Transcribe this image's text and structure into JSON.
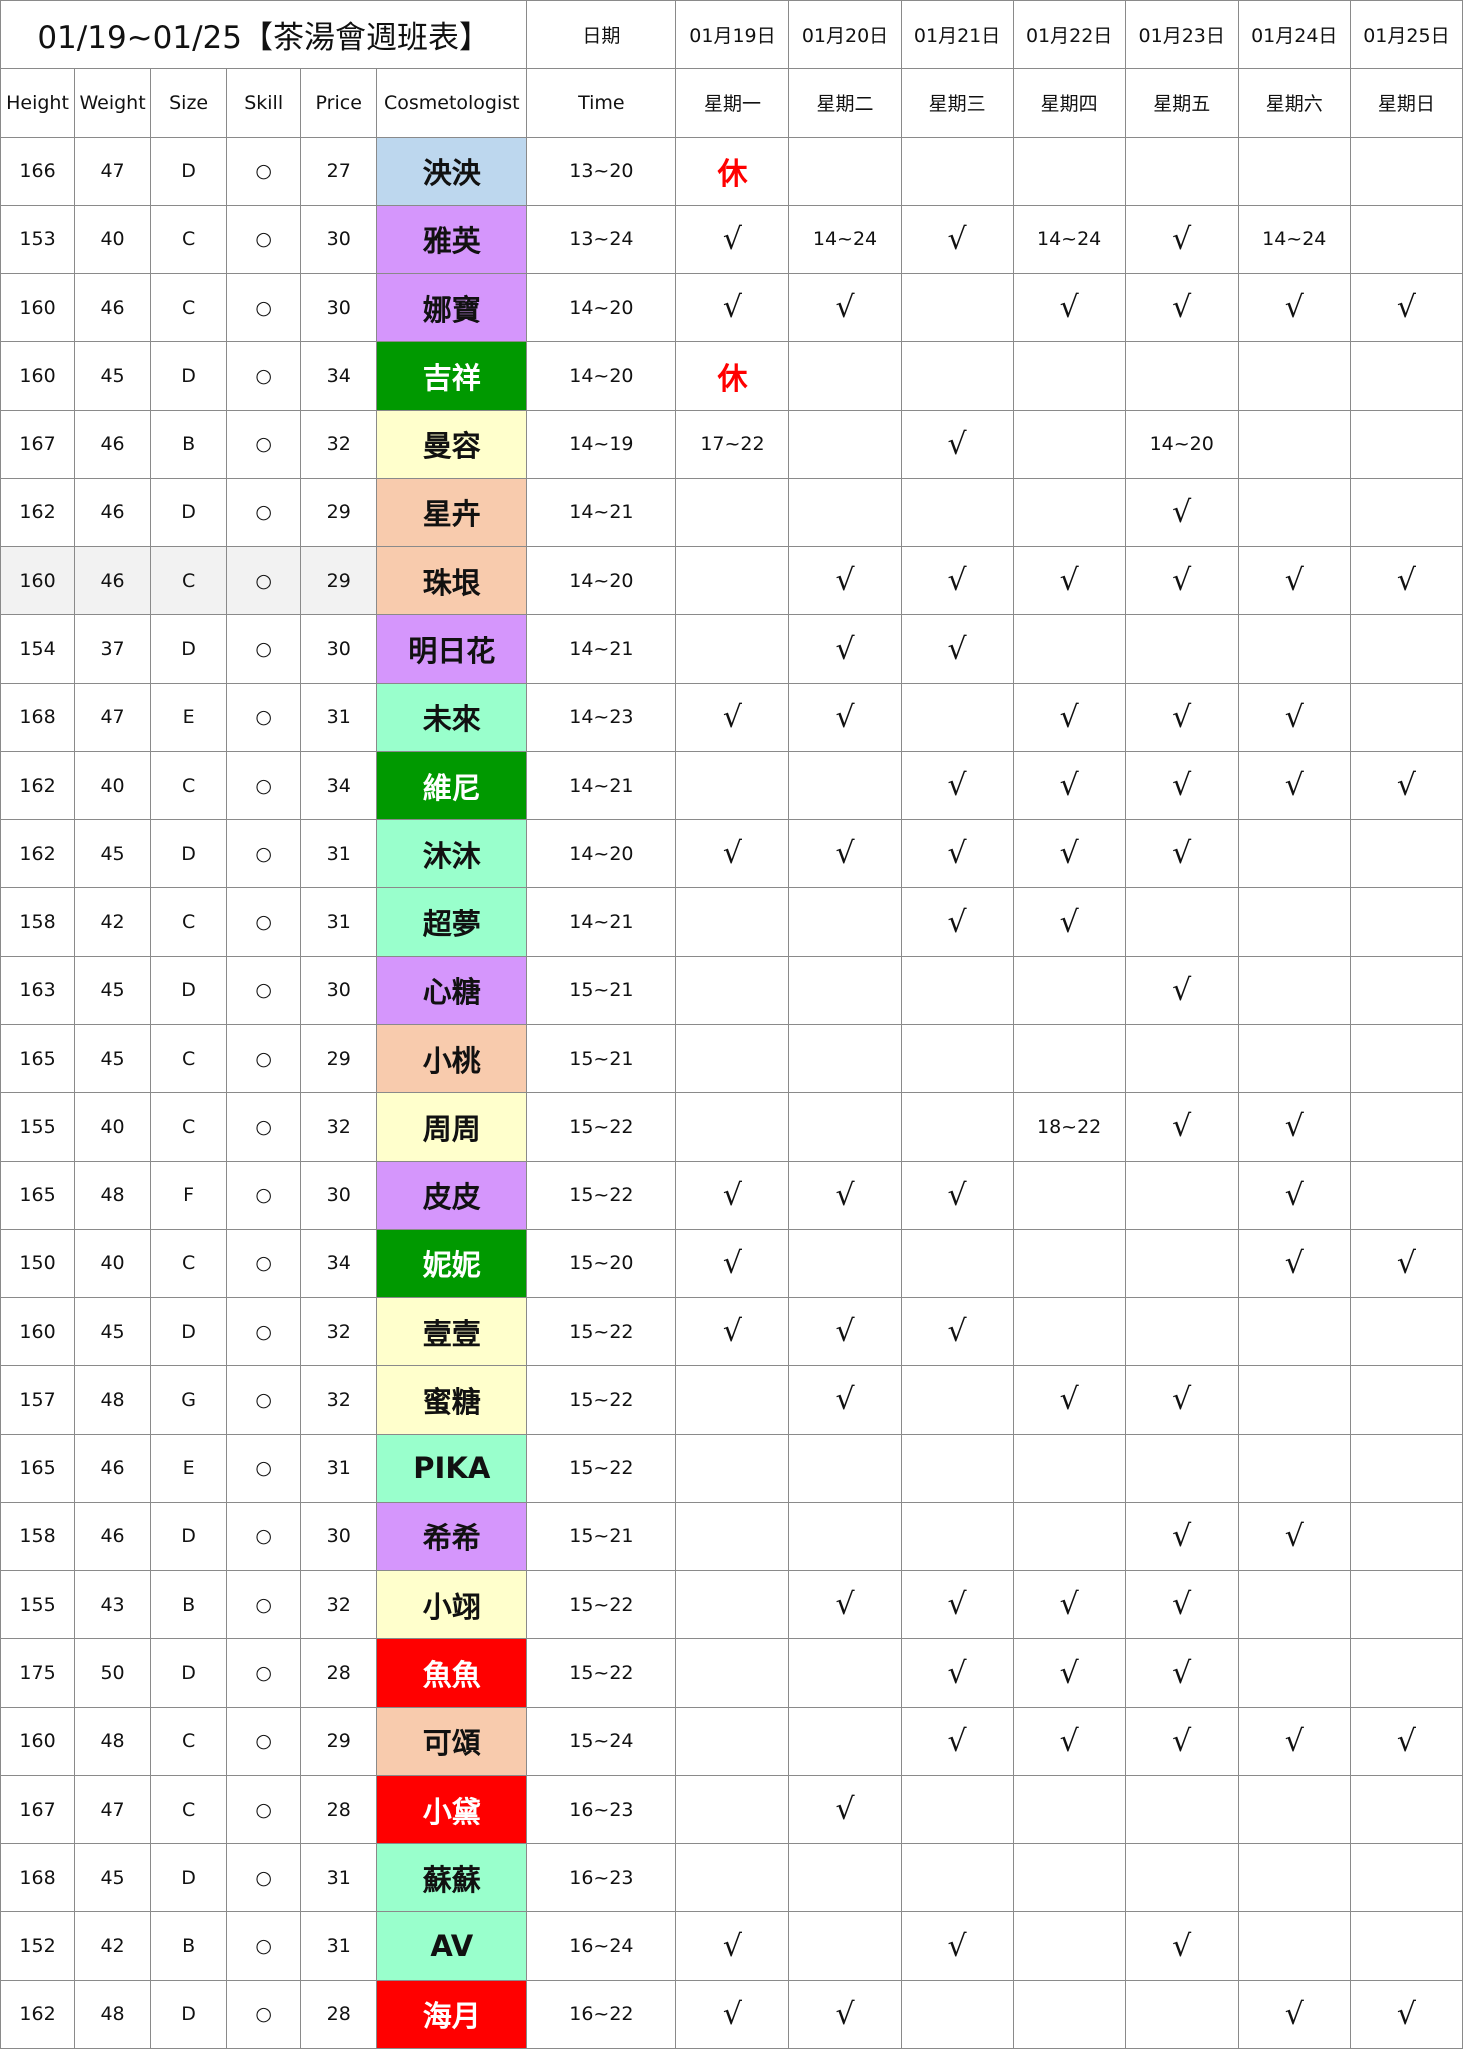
{
  "title": "01/19~01/25【茶湯會週班表】",
  "date_label": "日期",
  "dates": [
    "01月19日",
    "01月20日",
    "01月21日",
    "01月22日",
    "01月23日",
    "01月24日",
    "01月25日"
  ],
  "headers": [
    "Height",
    "Weight",
    "Size",
    "Skill",
    "Price",
    "Cosmetologist",
    "Time"
  ],
  "weekdays": [
    "星期一",
    "星期二",
    "星期三",
    "星期四",
    "星期五",
    "星期六",
    "星期日"
  ],
  "colors": {
    "blue": "#bdd7ee",
    "purple": "#d596fc",
    "green": "#009900",
    "yellow": "#ffffcc",
    "peach": "#f8cbad",
    "mint": "#99ffcc",
    "red": "#ff0000",
    "highlight_row": "#f2f2f2"
  },
  "rows": [
    {
      "height": "166",
      "weight": "47",
      "size": "D",
      "skill": "○",
      "price": "27",
      "name": "泱泱",
      "color": "blue",
      "time": "13~20",
      "days": [
        "休",
        "",
        "",
        "",
        "",
        "",
        ""
      ]
    },
    {
      "height": "153",
      "weight": "40",
      "size": "C",
      "skill": "○",
      "price": "30",
      "name": "雅英",
      "color": "purple",
      "time": "13~24",
      "days": [
        "√",
        "14~24",
        "√",
        "14~24",
        "√",
        "14~24",
        ""
      ]
    },
    {
      "height": "160",
      "weight": "46",
      "size": "C",
      "skill": "○",
      "price": "30",
      "name": "娜寶",
      "color": "purple",
      "time": "14~20",
      "days": [
        "√",
        "√",
        "",
        "√",
        "√",
        "√",
        "√"
      ]
    },
    {
      "height": "160",
      "weight": "45",
      "size": "D",
      "skill": "○",
      "price": "34",
      "name": "吉祥",
      "color": "green",
      "time": "14~20",
      "days": [
        "休",
        "",
        "",
        "",
        "",
        "",
        ""
      ]
    },
    {
      "height": "167",
      "weight": "46",
      "size": "B",
      "skill": "○",
      "price": "32",
      "name": "曼容",
      "color": "yellow",
      "time": "14~19",
      "days": [
        "17~22",
        "",
        "√",
        "",
        "14~20",
        "",
        ""
      ]
    },
    {
      "height": "162",
      "weight": "46",
      "size": "D",
      "skill": "○",
      "price": "29",
      "name": "星卉",
      "color": "peach",
      "time": "14~21",
      "days": [
        "",
        "",
        "",
        "",
        "√",
        "",
        ""
      ]
    },
    {
      "height": "160",
      "weight": "46",
      "size": "C",
      "skill": "○",
      "price": "29",
      "name": "珠垠",
      "color": "peach",
      "time": "14~20",
      "days": [
        "",
        "√",
        "√",
        "√",
        "√",
        "√",
        "√"
      ],
      "highlight": true
    },
    {
      "height": "154",
      "weight": "37",
      "size": "D",
      "skill": "○",
      "price": "30",
      "name": "明日花",
      "color": "purple",
      "time": "14~21",
      "days": [
        "",
        "√",
        "√",
        "",
        "",
        "",
        ""
      ]
    },
    {
      "height": "168",
      "weight": "47",
      "size": "E",
      "skill": "○",
      "price": "31",
      "name": "未來",
      "color": "mint",
      "time": "14~23",
      "days": [
        "√",
        "√",
        "",
        "√",
        "√",
        "√",
        ""
      ]
    },
    {
      "height": "162",
      "weight": "40",
      "size": "C",
      "skill": "○",
      "price": "34",
      "name": "維尼",
      "color": "green",
      "time": "14~21",
      "days": [
        "",
        "",
        "√",
        "√",
        "√",
        "√",
        "√"
      ]
    },
    {
      "height": "162",
      "weight": "45",
      "size": "D",
      "skill": "○",
      "price": "31",
      "name": "沐沐",
      "color": "mint",
      "time": "14~20",
      "days": [
        "√",
        "√",
        "√",
        "√",
        "√",
        "",
        ""
      ]
    },
    {
      "height": "158",
      "weight": "42",
      "size": "C",
      "skill": "○",
      "price": "31",
      "name": "超夢",
      "color": "mint",
      "time": "14~21",
      "days": [
        "",
        "",
        "√",
        "√",
        "",
        "",
        ""
      ]
    },
    {
      "height": "163",
      "weight": "45",
      "size": "D",
      "skill": "○",
      "price": "30",
      "name": "心糖",
      "color": "purple",
      "time": "15~21",
      "days": [
        "",
        "",
        "",
        "",
        "√",
        "",
        ""
      ]
    },
    {
      "height": "165",
      "weight": "45",
      "size": "C",
      "skill": "○",
      "price": "29",
      "name": "小桃",
      "color": "peach",
      "time": "15~21",
      "days": [
        "",
        "",
        "",
        "",
        "",
        "",
        ""
      ]
    },
    {
      "height": "155",
      "weight": "40",
      "size": "C",
      "skill": "○",
      "price": "32",
      "name": "周周",
      "color": "yellow",
      "time": "15~22",
      "days": [
        "",
        "",
        "",
        "18~22",
        "√",
        "√",
        ""
      ]
    },
    {
      "height": "165",
      "weight": "48",
      "size": "F",
      "skill": "○",
      "price": "30",
      "name": "皮皮",
      "color": "purple",
      "time": "15~22",
      "days": [
        "√",
        "√",
        "√",
        "",
        "",
        "√",
        ""
      ]
    },
    {
      "height": "150",
      "weight": "40",
      "size": "C",
      "skill": "○",
      "price": "34",
      "name": "妮妮",
      "color": "green",
      "time": "15~20",
      "days": [
        "√",
        "",
        "",
        "",
        "",
        "√",
        "√"
      ]
    },
    {
      "height": "160",
      "weight": "45",
      "size": "D",
      "skill": "○",
      "price": "32",
      "name": "壹壹",
      "color": "yellow",
      "time": "15~22",
      "days": [
        "√",
        "√",
        "√",
        "",
        "",
        "",
        ""
      ]
    },
    {
      "height": "157",
      "weight": "48",
      "size": "G",
      "skill": "○",
      "price": "32",
      "name": "蜜糖",
      "color": "yellow",
      "time": "15~22",
      "days": [
        "",
        "√",
        "",
        "√",
        "√",
        "",
        ""
      ]
    },
    {
      "height": "165",
      "weight": "46",
      "size": "E",
      "skill": "○",
      "price": "31",
      "name": "PIKA",
      "color": "mint",
      "time": "15~22",
      "days": [
        "",
        "",
        "",
        "",
        "",
        "",
        ""
      ]
    },
    {
      "height": "158",
      "weight": "46",
      "size": "D",
      "skill": "○",
      "price": "30",
      "name": "希希",
      "color": "purple",
      "time": "15~21",
      "days": [
        "",
        "",
        "",
        "",
        "√",
        "√",
        ""
      ]
    },
    {
      "height": "155",
      "weight": "43",
      "size": "B",
      "skill": "○",
      "price": "32",
      "name": "小翊",
      "color": "yellow",
      "time": "15~22",
      "days": [
        "",
        "√",
        "√",
        "√",
        "√",
        "",
        ""
      ]
    },
    {
      "height": "175",
      "weight": "50",
      "size": "D",
      "skill": "○",
      "price": "28",
      "name": "魚魚",
      "color": "red",
      "time": "15~22",
      "days": [
        "",
        "",
        "√",
        "√",
        "√",
        "",
        ""
      ]
    },
    {
      "height": "160",
      "weight": "48",
      "size": "C",
      "skill": "○",
      "price": "29",
      "name": "可頌",
      "color": "peach",
      "time": "15~24",
      "days": [
        "",
        "",
        "√",
        "√",
        "√",
        "√",
        "√"
      ]
    },
    {
      "height": "167",
      "weight": "47",
      "size": "C",
      "skill": "○",
      "price": "28",
      "name": "小黛",
      "color": "red",
      "time": "16~23",
      "days": [
        "",
        "√",
        "",
        "",
        "",
        "",
        ""
      ]
    },
    {
      "height": "168",
      "weight": "45",
      "size": "D",
      "skill": "○",
      "price": "31",
      "name": "蘇蘇",
      "color": "mint",
      "time": "16~23",
      "days": [
        "",
        "",
        "",
        "",
        "",
        "",
        ""
      ]
    },
    {
      "height": "152",
      "weight": "42",
      "size": "B",
      "skill": "○",
      "price": "31",
      "name": "AV",
      "color": "mint",
      "time": "16~24",
      "days": [
        "√",
        "",
        "√",
        "",
        "√",
        "",
        ""
      ]
    },
    {
      "height": "162",
      "weight": "48",
      "size": "D",
      "skill": "○",
      "price": "28",
      "name": "海月",
      "color": "red",
      "time": "16~22",
      "days": [
        "√",
        "√",
        "",
        "",
        "",
        "√",
        "√"
      ]
    }
  ]
}
